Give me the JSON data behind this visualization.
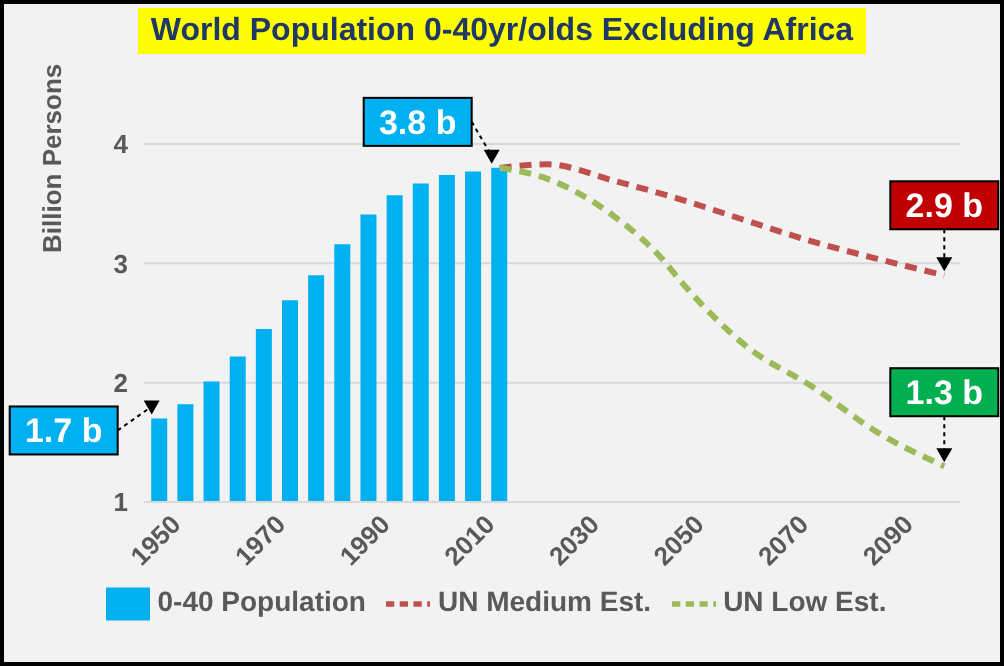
{
  "chart_data": {
    "type": "bar",
    "title": "World Population 0-40yr/olds Excluding Africa",
    "ylabel": "Billion Persons",
    "xlim": [
      1947,
      2103
    ],
    "xticks": [
      1950,
      1970,
      1990,
      2010,
      2030,
      2050,
      2070,
      2090
    ],
    "ylim": [
      1,
      4
    ],
    "yticks": [
      1,
      2,
      3,
      4
    ],
    "grid": "y",
    "legend": "bottom",
    "line_style": "dashed",
    "marker": "none",
    "series": [
      {
        "name": "0-40 Population",
        "color": "#00b0f0",
        "x": [
          1950,
          1955,
          1960,
          1965,
          1970,
          1975,
          1980,
          1985,
          1990,
          1995,
          2000,
          2005,
          2010,
          2015
        ],
        "values": [
          1.7,
          1.82,
          2.01,
          2.22,
          2.45,
          2.69,
          2.9,
          3.16,
          3.41,
          3.57,
          3.67,
          3.74,
          3.77,
          3.8
        ]
      },
      {
        "name": "UN Medium Est.",
        "type": "line",
        "color": "#c0504d",
        "x": [
          2015,
          2024,
          2037,
          2050,
          2062,
          2075,
          2087,
          2100
        ],
        "values": [
          3.8,
          3.83,
          3.69,
          3.53,
          3.36,
          3.18,
          3.04,
          2.9
        ]
      },
      {
        "name": "UN Low Est.",
        "type": "line",
        "color": "#9bbb59",
        "x": [
          2015,
          2024,
          2037,
          2046,
          2050,
          2056,
          2062,
          2075,
          2087,
          2100
        ],
        "values": [
          3.8,
          3.71,
          3.39,
          3.04,
          2.83,
          2.55,
          2.31,
          1.96,
          1.59,
          1.3
        ]
      }
    ],
    "annotations": [
      {
        "text": "1.7 b",
        "x": 1950,
        "y": 1.7
      },
      {
        "text": "3.8 b",
        "x": 2015,
        "y": 3.8
      },
      {
        "text": "2.9 b",
        "x": 2100,
        "y": 2.9
      },
      {
        "text": "1.3 b",
        "x": 2100,
        "y": 1.3
      }
    ]
  }
}
